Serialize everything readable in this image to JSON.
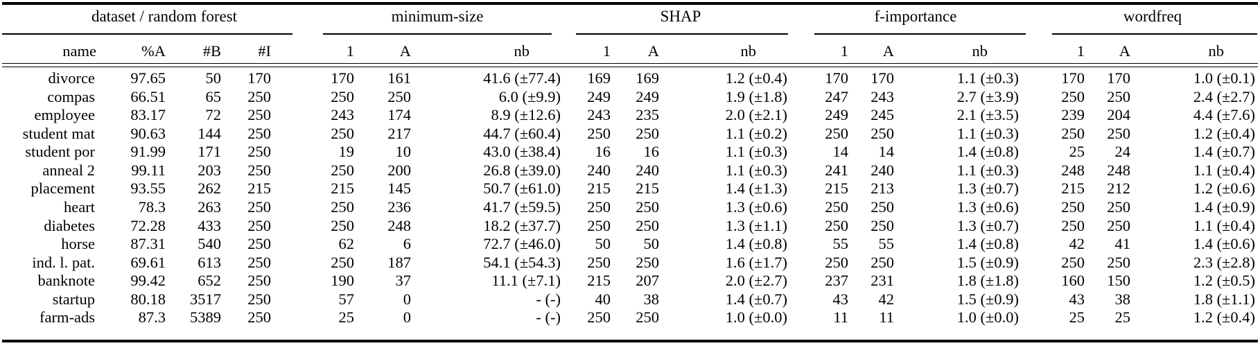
{
  "table": {
    "groups": [
      {
        "label": "dataset / random forest",
        "span": 4
      },
      {
        "label": "minimum-size",
        "span": 3
      },
      {
        "label": "SHAP",
        "span": 3
      },
      {
        "label": "f-importance",
        "span": 3
      },
      {
        "label": "wordfreq",
        "span": 3
      }
    ],
    "columns": [
      "name",
      "%A",
      "#B",
      "#I",
      "1",
      "A",
      "nb",
      "1",
      "A",
      "nb",
      "1",
      "A",
      "nb",
      "1",
      "A",
      "nb"
    ],
    "rows": [
      [
        "divorce",
        "97.65",
        "50",
        "170",
        "170",
        "161",
        "41.6 (±77.4)",
        "169",
        "169",
        "1.2 (±0.4)",
        "170",
        "170",
        "1.1 (±0.3)",
        "170",
        "170",
        "1.0 (±0.1)"
      ],
      [
        "compas",
        "66.51",
        "65",
        "250",
        "250",
        "250",
        "6.0 (±9.9)",
        "249",
        "249",
        "1.9 (±1.8)",
        "247",
        "243",
        "2.7 (±3.9)",
        "250",
        "250",
        "2.4 (±2.7)"
      ],
      [
        "employee",
        "83.17",
        "72",
        "250",
        "243",
        "174",
        "8.9 (±12.6)",
        "243",
        "235",
        "2.0 (±2.1)",
        "249",
        "245",
        "2.1 (±3.5)",
        "239",
        "204",
        "4.4 (±7.6)"
      ],
      [
        "student mat",
        "90.63",
        "144",
        "250",
        "250",
        "217",
        "44.7 (±60.4)",
        "250",
        "250",
        "1.1 (±0.2)",
        "250",
        "250",
        "1.1 (±0.3)",
        "250",
        "250",
        "1.2 (±0.4)"
      ],
      [
        "student por",
        "91.99",
        "171",
        "250",
        "19",
        "10",
        "43.0 (±38.4)",
        "16",
        "16",
        "1.1 (±0.3)",
        "14",
        "14",
        "1.4 (±0.8)",
        "25",
        "24",
        "1.4 (±0.7)"
      ],
      [
        "anneal 2",
        "99.11",
        "203",
        "250",
        "250",
        "200",
        "26.8 (±39.0)",
        "240",
        "240",
        "1.1 (±0.3)",
        "241",
        "240",
        "1.1 (±0.3)",
        "248",
        "248",
        "1.1 (±0.4)"
      ],
      [
        "placement",
        "93.55",
        "262",
        "215",
        "215",
        "145",
        "50.7 (±61.0)",
        "215",
        "215",
        "1.4 (±1.3)",
        "215",
        "213",
        "1.3 (±0.7)",
        "215",
        "212",
        "1.2 (±0.6)"
      ],
      [
        "heart",
        "78.3",
        "263",
        "250",
        "250",
        "236",
        "41.7 (±59.5)",
        "250",
        "250",
        "1.3 (±0.6)",
        "250",
        "250",
        "1.3 (±0.6)",
        "250",
        "250",
        "1.4 (±0.9)"
      ],
      [
        "diabetes",
        "72.28",
        "433",
        "250",
        "250",
        "248",
        "18.2 (±37.7)",
        "250",
        "250",
        "1.3 (±1.1)",
        "250",
        "250",
        "1.3 (±0.7)",
        "250",
        "250",
        "1.1 (±0.4)"
      ],
      [
        "horse",
        "87.31",
        "540",
        "250",
        "62",
        "6",
        "72.7 (±46.0)",
        "50",
        "50",
        "1.4 (±0.8)",
        "55",
        "55",
        "1.4 (±0.8)",
        "42",
        "41",
        "1.4 (±0.6)"
      ],
      [
        "ind. l. pat.",
        "69.61",
        "613",
        "250",
        "250",
        "187",
        "54.1 (±54.3)",
        "250",
        "250",
        "1.6 (±1.7)",
        "250",
        "250",
        "1.5 (±0.9)",
        "250",
        "250",
        "2.3 (±2.8)"
      ],
      [
        "banknote",
        "99.42",
        "652",
        "250",
        "190",
        "37",
        "11.1 (±7.1)",
        "215",
        "207",
        "2.0 (±2.7)",
        "237",
        "231",
        "1.8 (±1.8)",
        "160",
        "150",
        "1.2 (±0.5)"
      ],
      [
        "startup",
        "80.18",
        "3517",
        "250",
        "57",
        "0",
        "- (-)",
        "40",
        "38",
        "1.4 (±0.7)",
        "43",
        "42",
        "1.5 (±0.9)",
        "43",
        "38",
        "1.8 (±1.1)"
      ],
      [
        "farm-ads",
        "87.3",
        "5389",
        "250",
        "25",
        "0",
        "- (-)",
        "250",
        "250",
        "1.0 (±0.0)",
        "11",
        "11",
        "1.0 (±0.0)",
        "25",
        "25",
        "1.2 (±0.4)"
      ]
    ]
  }
}
